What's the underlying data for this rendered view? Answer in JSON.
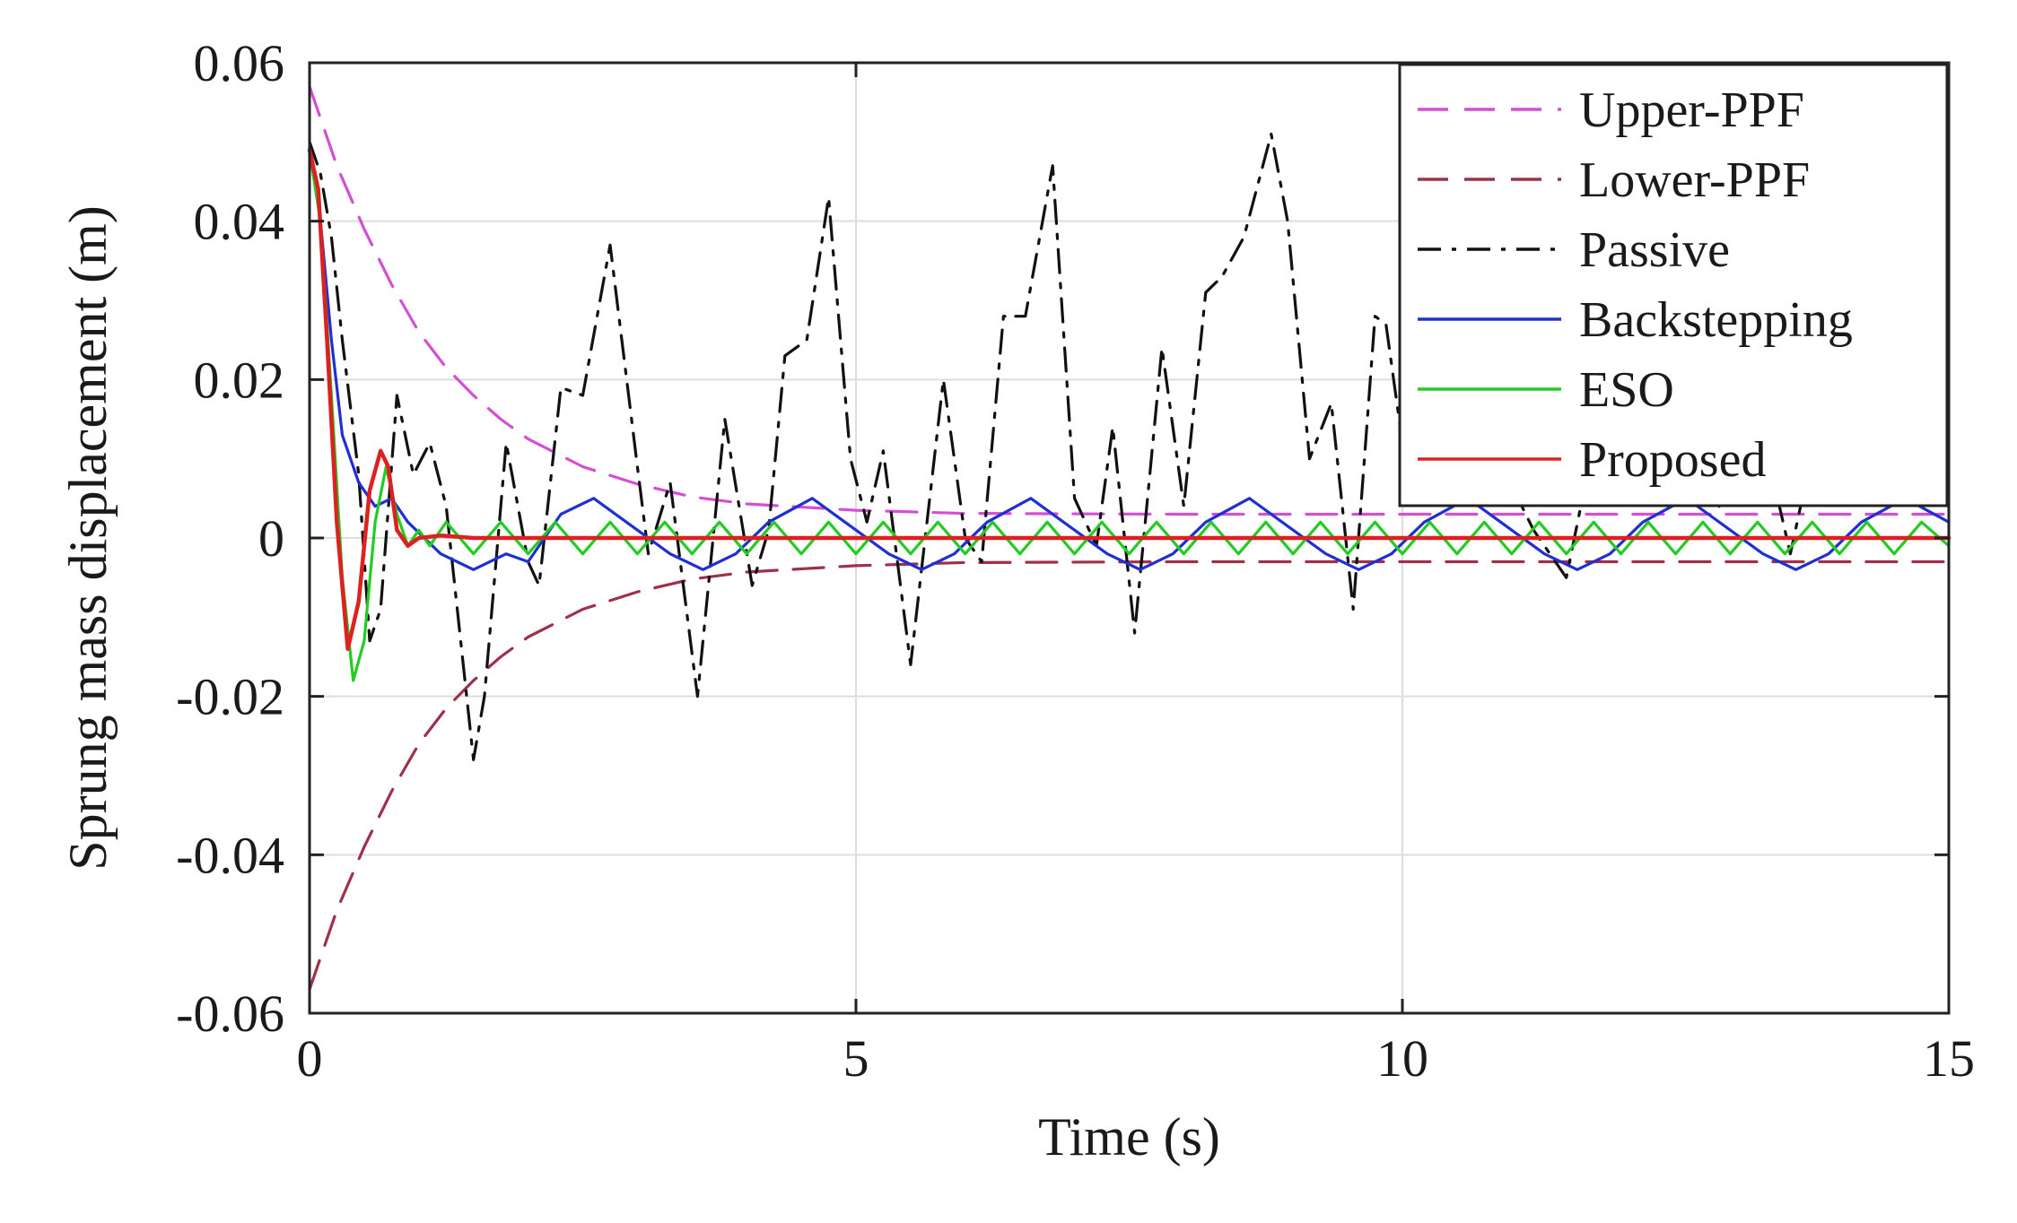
{
  "chart_data": {
    "type": "line",
    "xlabel": "Time (s)",
    "ylabel": "Sprung mass displacement (m)",
    "xlim": [
      0,
      15
    ],
    "ylim": [
      -0.06,
      0.06
    ],
    "xticks": [
      0,
      5,
      10,
      15
    ],
    "xtick_labels": [
      "0",
      "5",
      "10",
      "15"
    ],
    "yticks": [
      -0.06,
      -0.04,
      -0.02,
      0,
      0.02,
      0.04,
      0.06
    ],
    "ytick_labels": [
      "-0.06",
      "-0.04",
      "-0.02",
      "0",
      "0.02",
      "0.04",
      "0.06"
    ],
    "grid": true,
    "legend_position": "top-right",
    "series": [
      {
        "name": "Upper-PPF",
        "color": "#d44fd4",
        "style": "dashed",
        "x": [
          0,
          0.25,
          0.5,
          0.75,
          1,
          1.25,
          1.5,
          1.75,
          2,
          2.5,
          3,
          3.5,
          4,
          5,
          6,
          8,
          10,
          12,
          15
        ],
        "y": [
          0.057,
          0.047,
          0.039,
          0.032,
          0.026,
          0.0215,
          0.018,
          0.015,
          0.0125,
          0.009,
          0.0068,
          0.0052,
          0.0043,
          0.0035,
          0.0031,
          0.003,
          0.003,
          0.003,
          0.003
        ]
      },
      {
        "name": "Lower-PPF",
        "color": "#a0304a",
        "style": "dashed",
        "x": [
          0,
          0.25,
          0.5,
          0.75,
          1,
          1.25,
          1.5,
          1.75,
          2,
          2.5,
          3,
          3.5,
          4,
          5,
          6,
          8,
          10,
          12,
          15
        ],
        "y": [
          -0.057,
          -0.047,
          -0.039,
          -0.032,
          -0.026,
          -0.0215,
          -0.018,
          -0.015,
          -0.0125,
          -0.009,
          -0.0068,
          -0.0052,
          -0.0043,
          -0.0035,
          -0.0031,
          -0.003,
          -0.003,
          -0.003,
          -0.003
        ]
      },
      {
        "name": "Passive",
        "color": "#111111",
        "style": "dashdot",
        "x": [
          0,
          0.1,
          0.2,
          0.3,
          0.45,
          0.55,
          0.65,
          0.8,
          0.95,
          1.1,
          1.25,
          1.5,
          1.6,
          1.8,
          2.0,
          2.1,
          2.3,
          2.5,
          2.75,
          3.0,
          3.1,
          3.3,
          3.55,
          3.8,
          4.05,
          4.2,
          4.35,
          4.55,
          4.75,
          4.95,
          5.1,
          5.25,
          5.5,
          5.8,
          6.0,
          6.15,
          6.35,
          6.55,
          6.8,
          7.0,
          7.2,
          7.35,
          7.55,
          7.8,
          8.0,
          8.2,
          8.35,
          8.55,
          8.8,
          8.95,
          9.15,
          9.35,
          9.55,
          9.75,
          9.85,
          10.0,
          10.2,
          10.45,
          10.7,
          10.95,
          11.2,
          11.5,
          11.75,
          12.0,
          12.3,
          12.6,
          12.9,
          13.2,
          13.55,
          13.8,
          14.1,
          14.4,
          14.7,
          15.0
        ],
        "y": [
          0.05,
          0.046,
          0.038,
          0.025,
          0.008,
          -0.013,
          -0.009,
          0.018,
          0.008,
          0.012,
          0.004,
          -0.028,
          -0.02,
          0.012,
          -0.003,
          -0.006,
          0.019,
          0.018,
          0.037,
          0.009,
          -0.002,
          0.007,
          -0.02,
          0.015,
          -0.006,
          0.001,
          0.023,
          0.025,
          0.043,
          0.01,
          0.002,
          0.011,
          -0.016,
          0.02,
          0.0,
          -0.003,
          0.028,
          0.028,
          0.047,
          0.005,
          -0.001,
          0.014,
          -0.012,
          0.024,
          0.004,
          0.031,
          0.033,
          0.038,
          0.051,
          0.04,
          0.01,
          0.017,
          -0.009,
          0.028,
          0.027,
          0.012,
          0.019,
          0.026,
          0.014,
          0.008,
          0.001,
          -0.005,
          0.012,
          0.006,
          0.022,
          0.009,
          0.004,
          0.019,
          -0.002,
          0.014,
          0.024,
          0.01,
          0.018,
          0.008
        ]
      },
      {
        "name": "Backstepping",
        "color": "#2030d0",
        "style": "solid",
        "x": [
          0,
          0.1,
          0.2,
          0.3,
          0.45,
          0.6,
          0.75,
          0.9,
          1.2,
          1.5,
          1.8,
          2.0,
          2.3,
          2.6,
          3.0,
          3.3,
          3.6,
          3.9,
          4.2,
          4.6,
          5.0,
          5.3,
          5.6,
          5.9,
          6.2,
          6.6,
          7.0,
          7.3,
          7.6,
          7.9,
          8.2,
          8.6,
          9.0,
          9.3,
          9.6,
          9.9,
          10.2,
          10.6,
          11.0,
          11.3,
          11.6,
          11.9,
          12.2,
          12.6,
          13.0,
          13.3,
          13.6,
          13.9,
          14.2,
          14.6,
          15.0
        ],
        "y": [
          0.049,
          0.04,
          0.025,
          0.013,
          0.007,
          0.004,
          0.005,
          0.002,
          -0.002,
          -0.004,
          -0.002,
          -0.003,
          0.003,
          0.005,
          0.001,
          -0.002,
          -0.004,
          -0.002,
          0.002,
          0.005,
          0.001,
          -0.002,
          -0.004,
          -0.002,
          0.002,
          0.005,
          0.001,
          -0.002,
          -0.004,
          -0.002,
          0.002,
          0.005,
          0.001,
          -0.002,
          -0.004,
          -0.002,
          0.002,
          0.005,
          0.001,
          -0.002,
          -0.004,
          -0.002,
          0.002,
          0.005,
          0.001,
          -0.002,
          -0.004,
          -0.002,
          0.002,
          0.005,
          0.002
        ]
      },
      {
        "name": "ESO",
        "color": "#22cc22",
        "style": "solid",
        "x": [
          0,
          0.1,
          0.2,
          0.3,
          0.4,
          0.5,
          0.6,
          0.7,
          0.8,
          0.9,
          1.0,
          1.1,
          1.25,
          1.5,
          1.75,
          2.0,
          2.25,
          2.5,
          2.75,
          3.0,
          3.25,
          3.5,
          3.75,
          4.0,
          4.25,
          4.5,
          4.75,
          5.0,
          5.25,
          5.5,
          5.75,
          6.0,
          6.25,
          6.5,
          6.75,
          7.0,
          7.25,
          7.5,
          7.75,
          8.0,
          8.25,
          8.5,
          8.75,
          9.0,
          9.25,
          9.5,
          9.75,
          10.0,
          10.25,
          10.5,
          10.75,
          11.0,
          11.25,
          11.5,
          11.75,
          12.0,
          12.25,
          12.5,
          12.75,
          13.0,
          13.25,
          13.5,
          13.75,
          14.0,
          14.25,
          14.5,
          14.75,
          15.0
        ],
        "y": [
          0.049,
          0.04,
          0.018,
          -0.005,
          -0.018,
          -0.013,
          0.002,
          0.009,
          0.003,
          -0.001,
          0.001,
          -0.001,
          0.002,
          -0.002,
          0.002,
          -0.002,
          0.002,
          -0.002,
          0.002,
          -0.002,
          0.002,
          -0.002,
          0.002,
          -0.002,
          0.002,
          -0.002,
          0.002,
          -0.002,
          0.002,
          -0.002,
          0.002,
          -0.002,
          0.002,
          -0.002,
          0.002,
          -0.002,
          0.002,
          -0.002,
          0.002,
          -0.002,
          0.002,
          -0.002,
          0.002,
          -0.002,
          0.002,
          -0.002,
          0.002,
          -0.002,
          0.002,
          -0.002,
          0.002,
          -0.002,
          0.002,
          -0.002,
          0.002,
          -0.002,
          0.002,
          -0.002,
          0.002,
          -0.002,
          0.002,
          -0.002,
          0.002,
          -0.002,
          0.002,
          -0.002,
          0.002,
          -0.001
        ]
      },
      {
        "name": "Proposed",
        "color": "#dd2020",
        "style": "solid",
        "x": [
          0,
          0.08,
          0.16,
          0.25,
          0.35,
          0.45,
          0.55,
          0.65,
          0.72,
          0.8,
          0.9,
          1.0,
          1.2,
          1.5,
          2.0,
          3.0,
          5.0,
          10.0,
          15.0
        ],
        "y": [
          0.049,
          0.044,
          0.025,
          0.002,
          -0.014,
          -0.008,
          0.006,
          0.011,
          0.009,
          0.001,
          -0.001,
          0.0,
          0.0003,
          0.0,
          0.0,
          0.0,
          0.0,
          0.0,
          0.0
        ]
      }
    ]
  }
}
